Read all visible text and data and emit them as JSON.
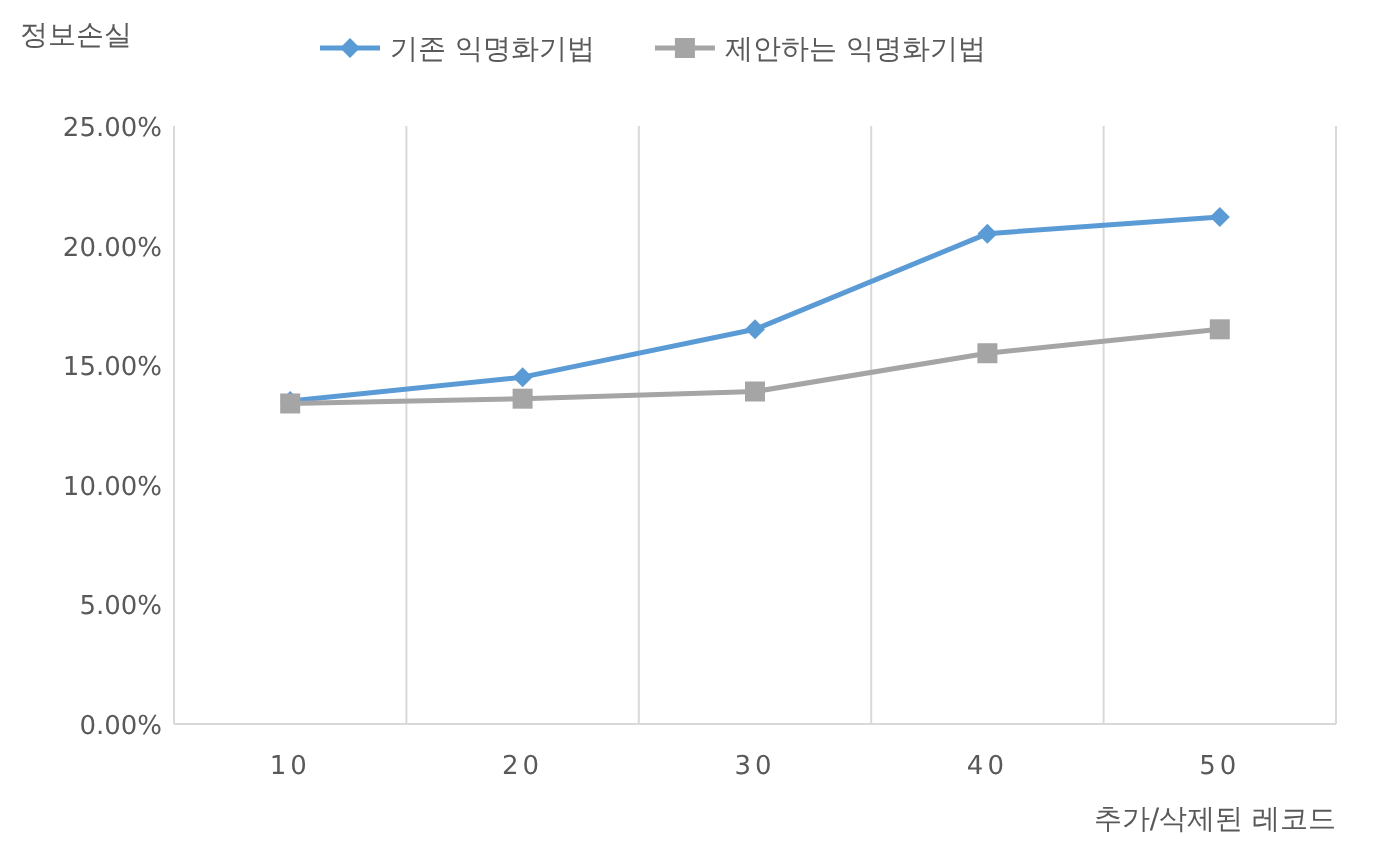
{
  "chart_data": {
    "type": "line",
    "ylabel": "정보손실",
    "xlabel": "추가/삭제된 레코드",
    "categories": [
      "10",
      "20",
      "30",
      "40",
      "50"
    ],
    "series": [
      {
        "name": "기존 익명화기법",
        "color": "#5b9bd5",
        "marker": "diamond",
        "values": [
          13.5,
          14.5,
          16.5,
          20.5,
          21.2
        ]
      },
      {
        "name": "제안하는 익명화기법",
        "color": "#a5a5a5",
        "marker": "square",
        "values": [
          13.4,
          13.6,
          13.9,
          15.5,
          16.5
        ]
      }
    ],
    "ylim": [
      0,
      25
    ],
    "yticks": [
      {
        "value": 0,
        "label": "0.00%"
      },
      {
        "value": 5,
        "label": "5.00%"
      },
      {
        "value": 10,
        "label": "10.00%"
      },
      {
        "value": 15,
        "label": "15.00%"
      },
      {
        "value": 20,
        "label": "20.00%"
      },
      {
        "value": 25,
        "label": "25.00%"
      }
    ],
    "grid": "x",
    "legend": "top",
    "line_style": "solid"
  }
}
